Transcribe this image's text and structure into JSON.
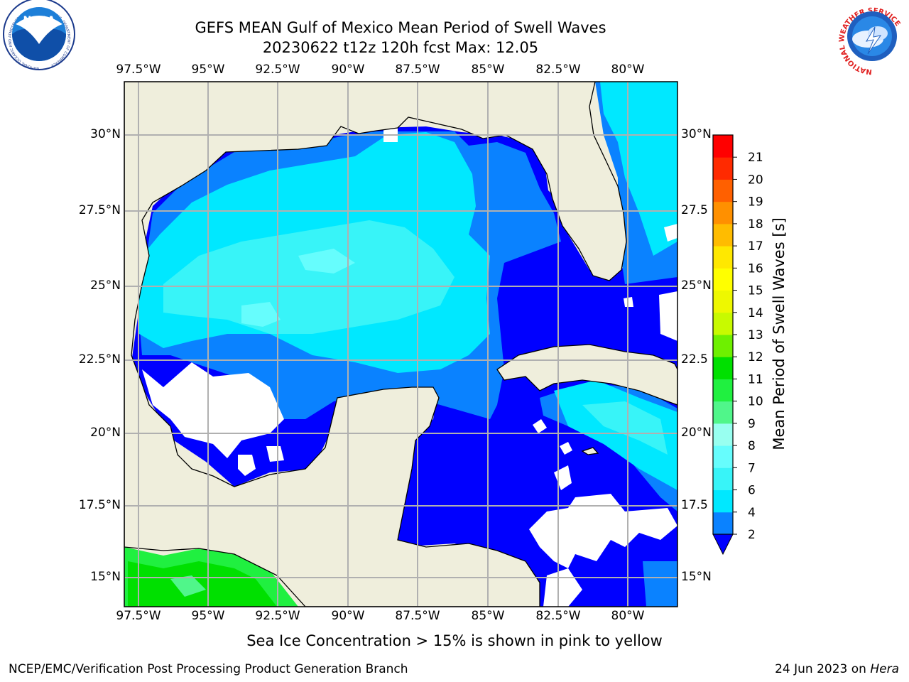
{
  "title": {
    "line1": "GEFS MEAN Gulf of Mexico Mean Period of Swell Waves",
    "line2": "20230622 t12z 120h fcst   Max: 12.05"
  },
  "logos": {
    "left": {
      "text": "NOAA",
      "ring": "NATIONAL OCEANIC AND ATMOSPHERIC ADMINISTRATION · U.S. DEPARTMENT OF COMMERCE"
    },
    "right": {
      "ring": "NATIONAL WEATHER SERVICE"
    }
  },
  "map": {
    "lon_ticks": [
      "97.5°W",
      "95°W",
      "92.5°W",
      "90°W",
      "87.5°W",
      "85°W",
      "82.5°W",
      "80°W"
    ],
    "lat_ticks_left": [
      "30°N",
      "27.5°N",
      "25°N",
      "22.5°N",
      "20°N",
      "17.5°N",
      "15°N"
    ],
    "lat_ticks_right": [
      "30°N",
      "27.5",
      "25°N",
      "22.5",
      "20°N",
      "17.5",
      "15°N"
    ],
    "land_color": "#efeedc",
    "grid_color": "#b0b0b0"
  },
  "colorbar": {
    "label": "Mean Period of Swell Waves [s]",
    "ticks": [
      "2",
      "4",
      "6",
      "7",
      "8",
      "9",
      "10",
      "11",
      "12",
      "13",
      "14",
      "15",
      "16",
      "17",
      "18",
      "19",
      "20",
      "21"
    ],
    "colors": [
      "#0a82ff",
      "#00e8ff",
      "#38f4f8",
      "#66fdfd",
      "#98fff0",
      "#50f68a",
      "#20f040",
      "#00e000",
      "#6ef000",
      "#c8fa00",
      "#eef800",
      "#ffff00",
      "#ffe800",
      "#ffbc00",
      "#ff9000",
      "#ff6000",
      "#ff2a00",
      "#ff0000"
    ],
    "under_color": "#0000ff"
  },
  "swell_colors": {
    "lt2": "#0000ff",
    "2_4": "#0a82ff",
    "4_6": "#00e8ff",
    "6_7": "#38f4f8",
    "7_8": "#66fdfd",
    "8_9": "#98fff0",
    "9_10": "#50f68a",
    "10_11": "#20f040",
    "11_12": "#00e000"
  },
  "note": "Sea Ice Concentration > 15% is shown in pink to yellow",
  "footer": {
    "left": "NCEP/EMC/Verification Post Processing Product Generation Branch",
    "date": "24 Jun 2023 on",
    "machine": "Hera"
  }
}
